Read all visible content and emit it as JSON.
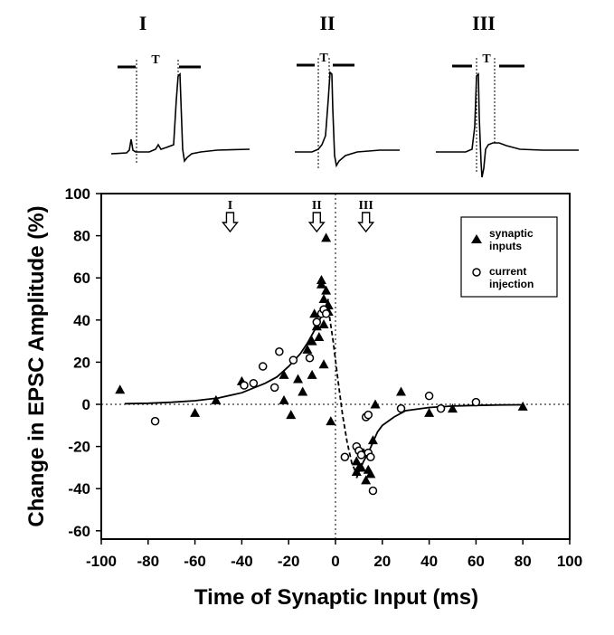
{
  "chart_data": {
    "type": "scatter",
    "xlabel": "Time of Synaptic Input (ms)",
    "ylabel": "Change in EPSC Amplitude (%)",
    "xlim": [
      -100,
      100
    ],
    "ylim": [
      -65,
      100
    ],
    "xticks": [
      "-100",
      "-80",
      "-60",
      "-40",
      "-20",
      "0",
      "20",
      "40",
      "60",
      "80",
      "100"
    ],
    "yticks": [
      "100",
      "80",
      "60",
      "40",
      "20",
      "0",
      "-20",
      "-40",
      "-60"
    ],
    "legend": {
      "placement": "top-right",
      "entries": [
        {
          "marker": "filled-triangle",
          "line1": "synaptic",
          "line2": "inputs"
        },
        {
          "marker": "open-circle",
          "line1": "current",
          "line2": "injection"
        }
      ]
    },
    "reference_lines": {
      "x": 0,
      "y": 0,
      "style": "dotted"
    },
    "annotations": [
      {
        "label": "I",
        "x": -45
      },
      {
        "label": "II",
        "x": -8
      },
      {
        "label": "III",
        "x": 13
      }
    ],
    "series": [
      {
        "name": "synaptic inputs",
        "marker": "filled-triangle",
        "points": [
          [
            -92,
            7
          ],
          [
            -60,
            -4
          ],
          [
            -51,
            2
          ],
          [
            -40,
            11
          ],
          [
            -22,
            14
          ],
          [
            -22,
            2
          ],
          [
            -19,
            -5
          ],
          [
            -16,
            12
          ],
          [
            -14,
            6
          ],
          [
            -12,
            26
          ],
          [
            -10,
            30
          ],
          [
            -9,
            43
          ],
          [
            -10,
            14
          ],
          [
            -8,
            37
          ],
          [
            -7,
            32
          ],
          [
            -6,
            57
          ],
          [
            -6,
            59
          ],
          [
            -5,
            38
          ],
          [
            -5,
            50
          ],
          [
            -5,
            19
          ],
          [
            -4,
            79
          ],
          [
            -4,
            54
          ],
          [
            -3,
            47
          ],
          [
            -3,
            44
          ],
          [
            -2,
            -8
          ],
          [
            9,
            -32
          ],
          [
            9,
            -27
          ],
          [
            10,
            -30
          ],
          [
            11,
            -30
          ],
          [
            12,
            -23
          ],
          [
            13,
            -36
          ],
          [
            14,
            -31
          ],
          [
            15,
            -33
          ],
          [
            16,
            -17
          ],
          [
            17,
            0
          ],
          [
            28,
            6
          ],
          [
            40,
            -4
          ],
          [
            50,
            -2
          ],
          [
            80,
            -1
          ]
        ]
      },
      {
        "name": "current injection",
        "marker": "open-circle",
        "points": [
          [
            -77,
            -8
          ],
          [
            -39,
            9
          ],
          [
            -35,
            10
          ],
          [
            -31,
            18
          ],
          [
            -24,
            25
          ],
          [
            -26,
            8
          ],
          [
            -18,
            21
          ],
          [
            -11,
            22
          ],
          [
            -8,
            39
          ],
          [
            -6,
            43
          ],
          [
            -5,
            45
          ],
          [
            -4,
            43
          ],
          [
            4,
            -25
          ],
          [
            9,
            -20
          ],
          [
            10,
            -22
          ],
          [
            11,
            -24
          ],
          [
            13,
            -6
          ],
          [
            14,
            -5
          ],
          [
            14,
            -23
          ],
          [
            15,
            -25
          ],
          [
            16,
            -41
          ],
          [
            28,
            -2
          ],
          [
            40,
            4
          ],
          [
            45,
            -2
          ],
          [
            60,
            1
          ]
        ]
      }
    ],
    "fits": [
      {
        "style": "solid",
        "points": [
          [
            -90,
            0.3
          ],
          [
            -80,
            0.5
          ],
          [
            -70,
            1
          ],
          [
            -60,
            1.7
          ],
          [
            -50,
            3
          ],
          [
            -40,
            5.5
          ],
          [
            -30,
            10
          ],
          [
            -25,
            13
          ],
          [
            -20,
            18
          ],
          [
            -15,
            24
          ],
          [
            -12,
            29
          ],
          [
            -10,
            33
          ],
          [
            -8,
            37
          ],
          [
            -6,
            42
          ],
          [
            -5,
            44
          ],
          [
            -4,
            47
          ],
          [
            -3,
            50
          ]
        ]
      },
      {
        "style": "dashed",
        "points": [
          [
            -3,
            45
          ],
          [
            -1,
            30
          ],
          [
            1,
            12
          ],
          [
            3,
            -5
          ],
          [
            5,
            -18
          ],
          [
            7,
            -28
          ],
          [
            9,
            -33
          ]
        ]
      },
      {
        "style": "solid",
        "points": [
          [
            9,
            -35
          ],
          [
            10,
            -32
          ],
          [
            12,
            -27
          ],
          [
            14,
            -23
          ],
          [
            16,
            -18
          ],
          [
            18,
            -13
          ],
          [
            20,
            -10
          ],
          [
            25,
            -6
          ],
          [
            30,
            -3
          ],
          [
            40,
            -1.5
          ],
          [
            50,
            -0.8
          ],
          [
            60,
            -0.5
          ],
          [
            70,
            -0.3
          ],
          [
            80,
            -0.2
          ]
        ]
      }
    ],
    "insets": [
      {
        "label": "I",
        "interval_label": "T"
      },
      {
        "label": "II",
        "interval_label": "T"
      },
      {
        "label": "III",
        "interval_label": "T"
      }
    ]
  }
}
